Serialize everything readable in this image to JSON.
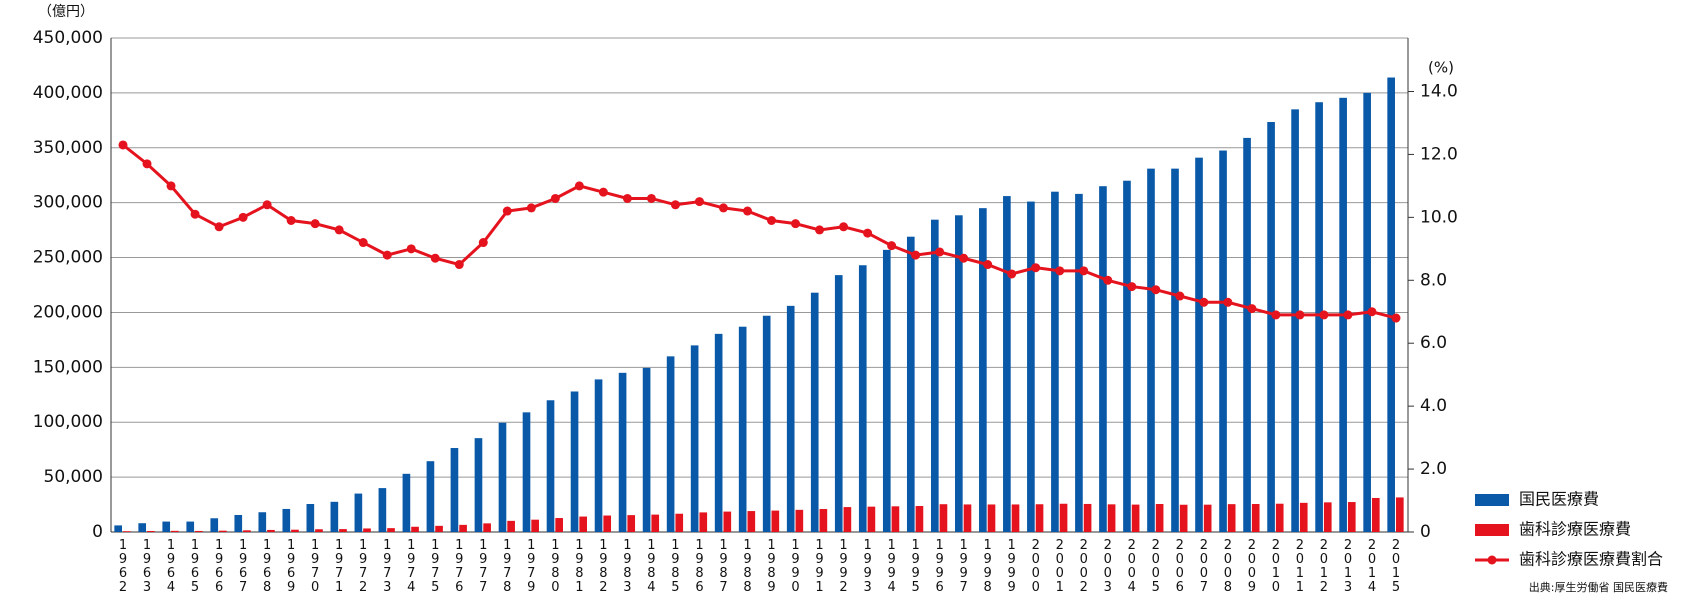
{
  "chart_data": {
    "type": "bar-line",
    "y_label": "（億円）",
    "y2_label": "(%)",
    "source": "出典:厚生労働省 国民医療費",
    "categories": [
      "1962",
      "1963",
      "1964",
      "1965",
      "1966",
      "1967",
      "1968",
      "1969",
      "1970",
      "1971",
      "1972",
      "1973",
      "1974",
      "1975",
      "1976",
      "1977",
      "1978",
      "1979",
      "1980",
      "1981",
      "1982",
      "1983",
      "1984",
      "1985",
      "1986",
      "1987",
      "1988",
      "1989",
      "1990",
      "1991",
      "1992",
      "1993",
      "1994",
      "1995",
      "1996",
      "1997",
      "1998",
      "1999",
      "2000",
      "2001",
      "2002",
      "2003",
      "2004",
      "2005",
      "2006",
      "2007",
      "2008",
      "2009",
      "2010",
      "2011",
      "2012",
      "2013",
      "2014",
      "2015"
    ],
    "series": [
      {
        "name": "国民医療費",
        "color": "#0a59a8",
        "kind": "bar",
        "values": [
          6000,
          8000,
          9500,
          9500,
          12500,
          15500,
          18000,
          21000,
          25500,
          27500,
          35000,
          40000,
          53000,
          64500,
          76500,
          85500,
          99500,
          109000,
          120000,
          128000,
          139000,
          145000,
          149500,
          160000,
          170000,
          180500,
          187000,
          197000,
          206000,
          218000,
          234000,
          243000,
          257000,
          269000,
          284500,
          288500,
          295000,
          306000,
          301000,
          310000,
          308000,
          315000,
          320000,
          331000,
          331000,
          341000,
          347500,
          359000,
          373500,
          385000,
          391500,
          395500,
          400000,
          414000
        ]
      },
      {
        "name": "歯科診療医療費",
        "color": "#e5131d",
        "kind": "bar",
        "values": [
          740,
          940,
          1050,
          960,
          1210,
          1550,
          1870,
          2080,
          2500,
          2640,
          3220,
          3520,
          4770,
          5610,
          6500,
          7870,
          10150,
          11230,
          12720,
          14080,
          15010,
          15370,
          15850,
          16640,
          17850,
          18590,
          19070,
          19500,
          20190,
          20930,
          22700,
          23090,
          23390,
          23670,
          25320,
          25100,
          25080,
          25090,
          25280,
          25730,
          25560,
          25200,
          24960,
          25490,
          24830,
          24890,
          25370,
          25490,
          25770,
          26570,
          27010,
          27290,
          31000,
          31500
        ]
      },
      {
        "name": "歯科診療医療費割合",
        "color": "#e5131d",
        "kind": "line",
        "axis": "y2",
        "values": [
          12.3,
          11.7,
          11.0,
          10.1,
          9.7,
          10.0,
          10.4,
          9.9,
          9.8,
          9.6,
          9.2,
          8.8,
          9.0,
          8.7,
          8.5,
          9.2,
          10.2,
          10.3,
          10.6,
          11.0,
          10.8,
          10.6,
          10.6,
          10.4,
          10.5,
          10.3,
          10.2,
          9.9,
          9.8,
          9.6,
          9.7,
          9.5,
          9.1,
          8.8,
          8.9,
          8.7,
          8.5,
          8.2,
          8.4,
          8.3,
          8.3,
          8.0,
          7.8,
          7.7,
          7.5,
          7.3,
          7.3,
          7.1,
          6.9,
          6.9,
          6.9,
          6.9,
          7.0,
          6.8
        ]
      }
    ],
    "ylim": [
      0,
      450000
    ],
    "yticks": [
      {
        "value": 0,
        "label": "0"
      },
      {
        "value": 50000,
        "label": "50,000"
      },
      {
        "value": 100000,
        "label": "100,000"
      },
      {
        "value": 150000,
        "label": "150,000"
      },
      {
        "value": 200000,
        "label": "200,000"
      },
      {
        "value": 250000,
        "label": "250,000"
      },
      {
        "value": 300000,
        "label": "300,000"
      },
      {
        "value": 350000,
        "label": "350,000"
      },
      {
        "value": 400000,
        "label": "400,000"
      },
      {
        "value": 450000,
        "label": "450,000"
      }
    ],
    "y2lim": [
      0,
      15.7
    ],
    "y2ticks": [
      0,
      {
        "value": 2,
        "label": "2.0"
      },
      {
        "value": 4,
        "label": "4.0"
      },
      {
        "value": 6,
        "label": "6.0"
      },
      {
        "value": 8,
        "label": "8.0"
      },
      {
        "value": 10,
        "label": "10.0"
      },
      {
        "value": 12,
        "label": "12.0"
      },
      {
        "value": 14,
        "label": "14.0"
      }
    ],
    "grid": true,
    "legend": "lower right"
  }
}
